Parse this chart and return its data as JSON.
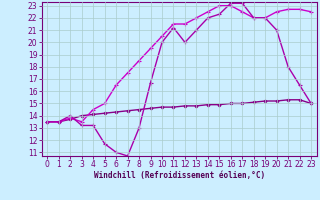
{
  "line1": {
    "x": [
      0,
      1,
      2,
      3,
      4,
      5,
      6,
      7,
      8,
      9,
      10,
      11,
      12,
      13,
      14,
      15,
      16,
      17,
      18,
      19,
      20,
      21,
      22,
      23
    ],
    "y": [
      13.5,
      13.5,
      13.7,
      14.0,
      14.1,
      14.2,
      14.3,
      14.4,
      14.5,
      14.6,
      14.7,
      14.7,
      14.8,
      14.8,
      14.9,
      14.9,
      15.0,
      15.0,
      15.1,
      15.2,
      15.2,
      15.3,
      15.3,
      15.0
    ],
    "color": "#880088",
    "lw": 1.0,
    "marker": "D",
    "ms": 1.5
  },
  "line2": {
    "x": [
      0,
      1,
      2,
      3,
      4,
      5,
      6,
      7,
      8,
      9,
      10,
      11,
      12,
      13,
      14,
      15,
      16,
      17,
      18,
      19,
      20,
      21,
      22,
      23
    ],
    "y": [
      13.5,
      13.5,
      13.8,
      13.5,
      14.5,
      15.0,
      16.5,
      17.5,
      18.5,
      19.5,
      20.5,
      21.5,
      21.5,
      22.0,
      22.5,
      23.0,
      23.0,
      22.5,
      22.0,
      22.0,
      22.5,
      22.7,
      22.7,
      22.5
    ],
    "color": "#cc00cc",
    "lw": 1.0,
    "marker": "+",
    "ms": 3.0
  },
  "line3": {
    "x": [
      0,
      1,
      2,
      3,
      4,
      5,
      6,
      7,
      8,
      9,
      10,
      11,
      12,
      13,
      14,
      15,
      16,
      17,
      18,
      19,
      20,
      21,
      22,
      23
    ],
    "y": [
      13.5,
      13.5,
      14.0,
      13.2,
      13.2,
      11.7,
      11.0,
      10.7,
      13.0,
      16.7,
      20.0,
      21.2,
      20.0,
      21.0,
      22.0,
      22.3,
      23.2,
      23.2,
      22.0,
      22.0,
      21.0,
      18.0,
      16.5,
      15.0
    ],
    "color": "#aa00aa",
    "lw": 1.0,
    "marker": "+",
    "ms": 3.0
  },
  "xlabel": "Windchill (Refroidissement éolien,°C)",
  "ylabel": "",
  "xlim": [
    -0.5,
    23.5
  ],
  "ylim": [
    10.7,
    23.3
  ],
  "yticks": [
    11,
    12,
    13,
    14,
    15,
    16,
    17,
    18,
    19,
    20,
    21,
    22,
    23
  ],
  "xticks": [
    0,
    1,
    2,
    3,
    4,
    5,
    6,
    7,
    8,
    9,
    10,
    11,
    12,
    13,
    14,
    15,
    16,
    17,
    18,
    19,
    20,
    21,
    22,
    23
  ],
  "bg_color": "#cceeff",
  "grid_color": "#aacccc",
  "axis_color": "#770077",
  "label_color": "#550055"
}
